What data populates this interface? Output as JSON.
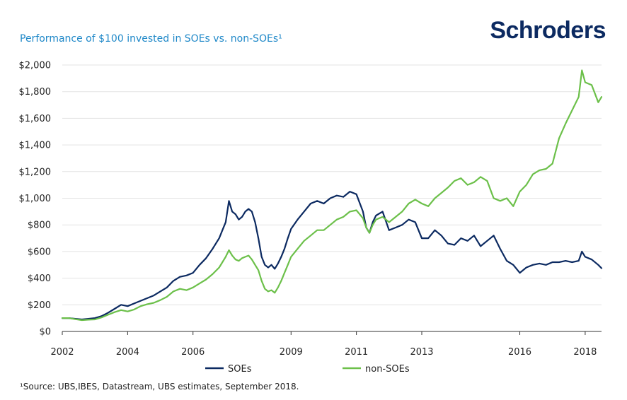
{
  "header": {
    "title": "Performance of $100 invested in SOEs vs. non-SOEs¹",
    "brand": "Schroders"
  },
  "footnote": "¹Source: UBS,IBES, Datastream, UBS estimates, September 2018.",
  "colors": {
    "soes": "#0c2a61",
    "non_soes": "#6cc04a",
    "grid": "#e3e3e3",
    "axis": "#333333"
  },
  "chart_data": {
    "type": "line",
    "title": "Performance of $100 invested in SOEs vs. non-SOEs¹",
    "xlabel": "",
    "ylabel": "",
    "xlim": [
      2002,
      2018.5
    ],
    "ylim": [
      0,
      2000
    ],
    "grid": true,
    "legend_position": "bottom",
    "y_ticks": [
      0,
      200,
      400,
      600,
      800,
      1000,
      1200,
      1400,
      1600,
      1800,
      2000
    ],
    "y_tick_labels": [
      "$0",
      "$200",
      "$400",
      "$600",
      "$800",
      "$1,000",
      "$1,200",
      "$1,400",
      "$1,600",
      "$1,800",
      "$2,000"
    ],
    "x_ticks": [
      2002,
      2004,
      2006,
      2009,
      2011,
      2013,
      2016,
      2018
    ],
    "x_tick_labels": [
      "2002",
      "2004",
      "2006",
      "2009",
      "2011",
      "2013",
      "2016",
      "2018"
    ],
    "series": [
      {
        "name": "SOEs",
        "color": "#0c2a61",
        "x": [
          2002.0,
          2002.2,
          2002.4,
          2002.6,
          2002.8,
          2003.0,
          2003.2,
          2003.4,
          2003.6,
          2003.8,
          2004.0,
          2004.2,
          2004.4,
          2004.6,
          2004.8,
          2005.0,
          2005.2,
          2005.4,
          2005.6,
          2005.8,
          2006.0,
          2006.2,
          2006.4,
          2006.6,
          2006.8,
          2006.9,
          2007.0,
          2007.1,
          2007.2,
          2007.3,
          2007.4,
          2007.5,
          2007.6,
          2007.7,
          2007.8,
          2007.9,
          2008.0,
          2008.1,
          2008.2,
          2008.3,
          2008.4,
          2008.5,
          2008.6,
          2008.7,
          2008.8,
          2008.9,
          2009.0,
          2009.2,
          2009.4,
          2009.6,
          2009.8,
          2010.0,
          2010.2,
          2010.4,
          2010.6,
          2010.8,
          2011.0,
          2011.2,
          2011.3,
          2011.4,
          2011.5,
          2011.6,
          2011.8,
          2012.0,
          2012.2,
          2012.4,
          2012.6,
          2012.8,
          2013.0,
          2013.2,
          2013.4,
          2013.6,
          2013.8,
          2014.0,
          2014.2,
          2014.4,
          2014.6,
          2014.8,
          2015.0,
          2015.2,
          2015.4,
          2015.6,
          2015.8,
          2016.0,
          2016.2,
          2016.4,
          2016.6,
          2016.8,
          2017.0,
          2017.2,
          2017.4,
          2017.6,
          2017.8,
          2017.9,
          2018.0,
          2018.2,
          2018.4,
          2018.5
        ],
        "values": [
          100,
          100,
          95,
          90,
          95,
          100,
          115,
          140,
          170,
          200,
          190,
          210,
          230,
          250,
          270,
          300,
          330,
          380,
          410,
          420,
          440,
          500,
          550,
          620,
          700,
          760,
          820,
          980,
          900,
          880,
          840,
          860,
          900,
          920,
          900,
          820,
          700,
          560,
          500,
          480,
          500,
          470,
          510,
          560,
          620,
          700,
          770,
          840,
          900,
          960,
          980,
          960,
          1000,
          1020,
          1010,
          1050,
          1030,
          900,
          780,
          740,
          820,
          870,
          900,
          760,
          780,
          800,
          840,
          820,
          700,
          700,
          760,
          720,
          660,
          650,
          700,
          680,
          720,
          640,
          680,
          720,
          620,
          530,
          500,
          440,
          480,
          500,
          510,
          500,
          520,
          520,
          530,
          520,
          530,
          600,
          560,
          540,
          500,
          475
        ]
      },
      {
        "name": "non-SOEs",
        "color": "#6cc04a",
        "x": [
          2002.0,
          2002.2,
          2002.4,
          2002.6,
          2002.8,
          2003.0,
          2003.2,
          2003.4,
          2003.6,
          2003.8,
          2004.0,
          2004.2,
          2004.4,
          2004.6,
          2004.8,
          2005.0,
          2005.2,
          2005.4,
          2005.6,
          2005.8,
          2006.0,
          2006.2,
          2006.4,
          2006.6,
          2006.8,
          2006.9,
          2007.0,
          2007.1,
          2007.2,
          2007.3,
          2007.4,
          2007.5,
          2007.6,
          2007.7,
          2007.8,
          2007.9,
          2008.0,
          2008.1,
          2008.2,
          2008.3,
          2008.4,
          2008.5,
          2008.6,
          2008.7,
          2008.8,
          2008.9,
          2009.0,
          2009.2,
          2009.4,
          2009.6,
          2009.8,
          2010.0,
          2010.2,
          2010.4,
          2010.6,
          2010.8,
          2011.0,
          2011.2,
          2011.3,
          2011.4,
          2011.5,
          2011.6,
          2011.8,
          2012.0,
          2012.2,
          2012.4,
          2012.6,
          2012.8,
          2013.0,
          2013.2,
          2013.4,
          2013.6,
          2013.8,
          2014.0,
          2014.2,
          2014.4,
          2014.6,
          2014.8,
          2015.0,
          2015.2,
          2015.4,
          2015.6,
          2015.8,
          2016.0,
          2016.2,
          2016.4,
          2016.6,
          2016.8,
          2017.0,
          2017.2,
          2017.4,
          2017.6,
          2017.8,
          2017.9,
          2018.0,
          2018.2,
          2018.4,
          2018.5
        ],
        "values": [
          100,
          100,
          92,
          85,
          88,
          90,
          105,
          125,
          145,
          160,
          150,
          165,
          190,
          205,
          215,
          235,
          260,
          300,
          320,
          310,
          330,
          360,
          390,
          430,
          480,
          520,
          560,
          610,
          570,
          540,
          530,
          550,
          560,
          570,
          540,
          500,
          460,
          380,
          320,
          300,
          310,
          290,
          330,
          380,
          440,
          500,
          560,
          620,
          680,
          720,
          760,
          760,
          800,
          840,
          860,
          900,
          910,
          850,
          780,
          740,
          800,
          840,
          860,
          820,
          860,
          900,
          960,
          990,
          960,
          940,
          1000,
          1040,
          1080,
          1130,
          1150,
          1100,
          1120,
          1160,
          1130,
          1000,
          980,
          1000,
          940,
          1050,
          1100,
          1180,
          1210,
          1220,
          1260,
          1450,
          1560,
          1660,
          1760,
          1960,
          1870,
          1850,
          1720,
          1760
        ]
      }
    ]
  },
  "legend": [
    {
      "label": "SOEs",
      "color": "#0c2a61"
    },
    {
      "label": "non-SOEs",
      "color": "#6cc04a"
    }
  ]
}
